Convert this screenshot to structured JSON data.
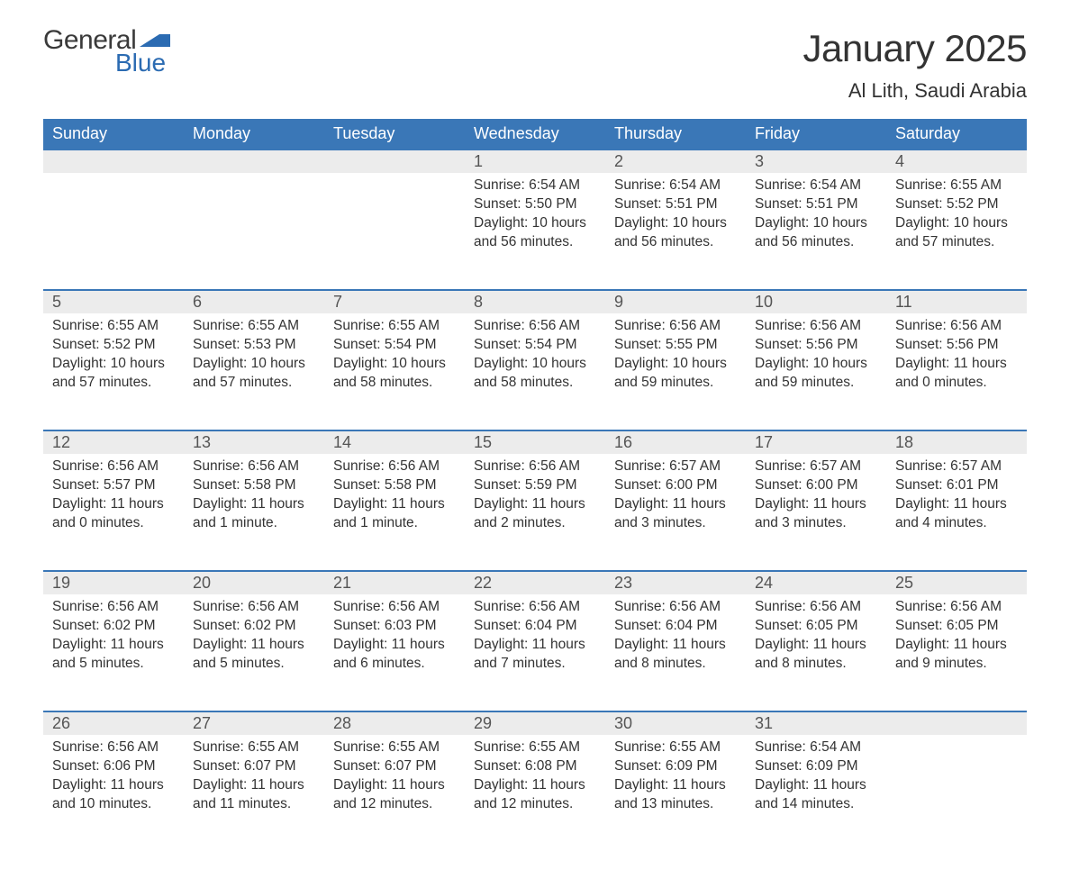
{
  "brand": {
    "general": "General",
    "blue": "Blue"
  },
  "header": {
    "month_title": "January 2025",
    "location": "Al Lith, Saudi Arabia"
  },
  "style": {
    "header_bg": "#3a77b7",
    "header_text": "#ffffff",
    "daynum_bg": "#ececec",
    "row_border": "#3a77b7",
    "body_text": "#333333",
    "logo_blue": "#2b6bb2",
    "font_family": "Arial",
    "title_fontsize_pt": 32,
    "location_fontsize_pt": 17,
    "dayheader_fontsize_pt": 14,
    "cell_fontsize_pt": 12
  },
  "calendar": {
    "type": "table",
    "day_headers": [
      "Sunday",
      "Monday",
      "Tuesday",
      "Wednesday",
      "Thursday",
      "Friday",
      "Saturday"
    ],
    "weeks": [
      [
        null,
        null,
        null,
        {
          "n": "1",
          "sunrise": "Sunrise: 6:54 AM",
          "sunset": "Sunset: 5:50 PM",
          "d1": "Daylight: 10 hours",
          "d2": "and 56 minutes."
        },
        {
          "n": "2",
          "sunrise": "Sunrise: 6:54 AM",
          "sunset": "Sunset: 5:51 PM",
          "d1": "Daylight: 10 hours",
          "d2": "and 56 minutes."
        },
        {
          "n": "3",
          "sunrise": "Sunrise: 6:54 AM",
          "sunset": "Sunset: 5:51 PM",
          "d1": "Daylight: 10 hours",
          "d2": "and 56 minutes."
        },
        {
          "n": "4",
          "sunrise": "Sunrise: 6:55 AM",
          "sunset": "Sunset: 5:52 PM",
          "d1": "Daylight: 10 hours",
          "d2": "and 57 minutes."
        }
      ],
      [
        {
          "n": "5",
          "sunrise": "Sunrise: 6:55 AM",
          "sunset": "Sunset: 5:52 PM",
          "d1": "Daylight: 10 hours",
          "d2": "and 57 minutes."
        },
        {
          "n": "6",
          "sunrise": "Sunrise: 6:55 AM",
          "sunset": "Sunset: 5:53 PM",
          "d1": "Daylight: 10 hours",
          "d2": "and 57 minutes."
        },
        {
          "n": "7",
          "sunrise": "Sunrise: 6:55 AM",
          "sunset": "Sunset: 5:54 PM",
          "d1": "Daylight: 10 hours",
          "d2": "and 58 minutes."
        },
        {
          "n": "8",
          "sunrise": "Sunrise: 6:56 AM",
          "sunset": "Sunset: 5:54 PM",
          "d1": "Daylight: 10 hours",
          "d2": "and 58 minutes."
        },
        {
          "n": "9",
          "sunrise": "Sunrise: 6:56 AM",
          "sunset": "Sunset: 5:55 PM",
          "d1": "Daylight: 10 hours",
          "d2": "and 59 minutes."
        },
        {
          "n": "10",
          "sunrise": "Sunrise: 6:56 AM",
          "sunset": "Sunset: 5:56 PM",
          "d1": "Daylight: 10 hours",
          "d2": "and 59 minutes."
        },
        {
          "n": "11",
          "sunrise": "Sunrise: 6:56 AM",
          "sunset": "Sunset: 5:56 PM",
          "d1": "Daylight: 11 hours",
          "d2": "and 0 minutes."
        }
      ],
      [
        {
          "n": "12",
          "sunrise": "Sunrise: 6:56 AM",
          "sunset": "Sunset: 5:57 PM",
          "d1": "Daylight: 11 hours",
          "d2": "and 0 minutes."
        },
        {
          "n": "13",
          "sunrise": "Sunrise: 6:56 AM",
          "sunset": "Sunset: 5:58 PM",
          "d1": "Daylight: 11 hours",
          "d2": "and 1 minute."
        },
        {
          "n": "14",
          "sunrise": "Sunrise: 6:56 AM",
          "sunset": "Sunset: 5:58 PM",
          "d1": "Daylight: 11 hours",
          "d2": "and 1 minute."
        },
        {
          "n": "15",
          "sunrise": "Sunrise: 6:56 AM",
          "sunset": "Sunset: 5:59 PM",
          "d1": "Daylight: 11 hours",
          "d2": "and 2 minutes."
        },
        {
          "n": "16",
          "sunrise": "Sunrise: 6:57 AM",
          "sunset": "Sunset: 6:00 PM",
          "d1": "Daylight: 11 hours",
          "d2": "and 3 minutes."
        },
        {
          "n": "17",
          "sunrise": "Sunrise: 6:57 AM",
          "sunset": "Sunset: 6:00 PM",
          "d1": "Daylight: 11 hours",
          "d2": "and 3 minutes."
        },
        {
          "n": "18",
          "sunrise": "Sunrise: 6:57 AM",
          "sunset": "Sunset: 6:01 PM",
          "d1": "Daylight: 11 hours",
          "d2": "and 4 minutes."
        }
      ],
      [
        {
          "n": "19",
          "sunrise": "Sunrise: 6:56 AM",
          "sunset": "Sunset: 6:02 PM",
          "d1": "Daylight: 11 hours",
          "d2": "and 5 minutes."
        },
        {
          "n": "20",
          "sunrise": "Sunrise: 6:56 AM",
          "sunset": "Sunset: 6:02 PM",
          "d1": "Daylight: 11 hours",
          "d2": "and 5 minutes."
        },
        {
          "n": "21",
          "sunrise": "Sunrise: 6:56 AM",
          "sunset": "Sunset: 6:03 PM",
          "d1": "Daylight: 11 hours",
          "d2": "and 6 minutes."
        },
        {
          "n": "22",
          "sunrise": "Sunrise: 6:56 AM",
          "sunset": "Sunset: 6:04 PM",
          "d1": "Daylight: 11 hours",
          "d2": "and 7 minutes."
        },
        {
          "n": "23",
          "sunrise": "Sunrise: 6:56 AM",
          "sunset": "Sunset: 6:04 PM",
          "d1": "Daylight: 11 hours",
          "d2": "and 8 minutes."
        },
        {
          "n": "24",
          "sunrise": "Sunrise: 6:56 AM",
          "sunset": "Sunset: 6:05 PM",
          "d1": "Daylight: 11 hours",
          "d2": "and 8 minutes."
        },
        {
          "n": "25",
          "sunrise": "Sunrise: 6:56 AM",
          "sunset": "Sunset: 6:05 PM",
          "d1": "Daylight: 11 hours",
          "d2": "and 9 minutes."
        }
      ],
      [
        {
          "n": "26",
          "sunrise": "Sunrise: 6:56 AM",
          "sunset": "Sunset: 6:06 PM",
          "d1": "Daylight: 11 hours",
          "d2": "and 10 minutes."
        },
        {
          "n": "27",
          "sunrise": "Sunrise: 6:55 AM",
          "sunset": "Sunset: 6:07 PM",
          "d1": "Daylight: 11 hours",
          "d2": "and 11 minutes."
        },
        {
          "n": "28",
          "sunrise": "Sunrise: 6:55 AM",
          "sunset": "Sunset: 6:07 PM",
          "d1": "Daylight: 11 hours",
          "d2": "and 12 minutes."
        },
        {
          "n": "29",
          "sunrise": "Sunrise: 6:55 AM",
          "sunset": "Sunset: 6:08 PM",
          "d1": "Daylight: 11 hours",
          "d2": "and 12 minutes."
        },
        {
          "n": "30",
          "sunrise": "Sunrise: 6:55 AM",
          "sunset": "Sunset: 6:09 PM",
          "d1": "Daylight: 11 hours",
          "d2": "and 13 minutes."
        },
        {
          "n": "31",
          "sunrise": "Sunrise: 6:54 AM",
          "sunset": "Sunset: 6:09 PM",
          "d1": "Daylight: 11 hours",
          "d2": "and 14 minutes."
        },
        null
      ]
    ]
  }
}
